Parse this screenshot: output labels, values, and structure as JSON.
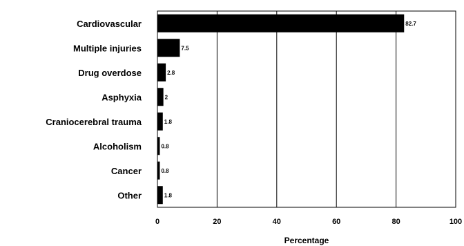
{
  "chart_data": {
    "type": "bar",
    "orientation": "horizontal",
    "categories": [
      "Cardiovascular",
      "Multiple injuries",
      "Drug overdose",
      "Asphyxia",
      "Craniocerebral trauma",
      "Alcoholism",
      "Cancer",
      "Other"
    ],
    "values": [
      82.7,
      7.5,
      2.8,
      2,
      1.8,
      0.8,
      0.8,
      1.8
    ],
    "value_labels": [
      "82.7",
      "7.5",
      "2.8",
      "2",
      "1.8",
      "0.8",
      "0.8",
      "1.8"
    ],
    "xlabel": "Percentage",
    "ylabel": "",
    "xlim": [
      0,
      100
    ],
    "xticks": [
      0,
      20,
      40,
      60,
      80,
      100
    ],
    "xtick_labels": [
      "0",
      "20",
      "40",
      "60",
      "80",
      "100"
    ],
    "grid": "vertical",
    "legend": "none",
    "colors": {
      "bar": "#000000",
      "grid": "#000000",
      "background": "#ffffff"
    }
  }
}
